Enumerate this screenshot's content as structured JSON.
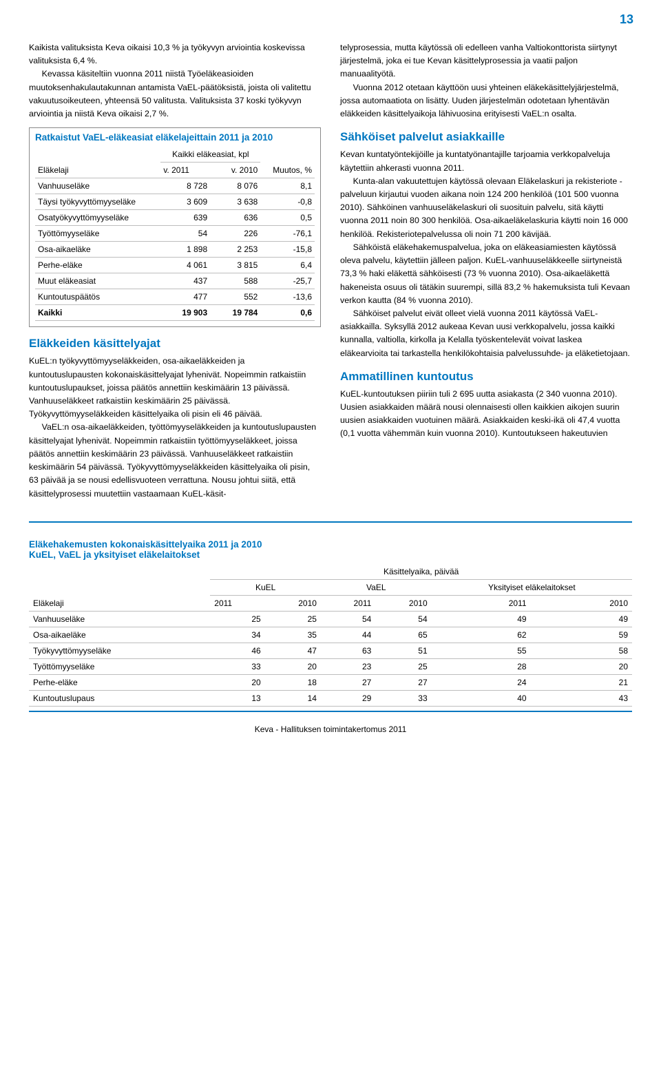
{
  "page_number": "13",
  "colors": {
    "accent": "#0077c0",
    "rule": "#bdbdbd",
    "text": "#000000",
    "background": "#ffffff"
  },
  "left": {
    "p1": "Kaikista valituksista Keva oikaisi 10,3 % ja työkyvyn arviointia koskevissa valituksista 6,4 %.",
    "p2": "Kevassa käsiteltiin vuonna 2011 niistä Työeläkeasioiden muutoksenhakulautakunnan antamista VaEL-päätöksistä, joista oli valitettu vakuutusoikeuteen, yhteensä 50 valitusta. Valituksista 37 koski työkyvyn arviointia ja niistä Keva oikaisi 2,7 %.",
    "table1": {
      "caption": "Ratkaistut VaEL-eläkeasiat eläkelajeittain 2011 ja 2010",
      "col_label": "Eläkelaji",
      "header_group": "Kaikki eläkeasiat, kpl",
      "col_2011": "v. 2011",
      "col_2010": "v. 2010",
      "col_change": "Muutos, %",
      "rows": [
        {
          "label": "Vanhuuseläke",
          "v2011": "8 728",
          "v2010": "8 076",
          "chg": "8,1"
        },
        {
          "label": "Täysi työkyvyttömyyseläke",
          "v2011": "3 609",
          "v2010": "3 638",
          "chg": "-0,8"
        },
        {
          "label": "Osatyökyvyttömyyseläke",
          "v2011": "639",
          "v2010": "636",
          "chg": "0,5"
        },
        {
          "label": "Työttömyyseläke",
          "v2011": "54",
          "v2010": "226",
          "chg": "-76,1"
        },
        {
          "label": "Osa-aikaeläke",
          "v2011": "1 898",
          "v2010": "2 253",
          "chg": "-15,8"
        },
        {
          "label": "Perhe-eläke",
          "v2011": "4 061",
          "v2010": "3 815",
          "chg": "6,4"
        },
        {
          "label": "Muut eläkeasiat",
          "v2011": "437",
          "v2010": "588",
          "chg": "-25,7"
        },
        {
          "label": "Kuntoutuspäätös",
          "v2011": "477",
          "v2010": "552",
          "chg": "-13,6"
        }
      ],
      "total": {
        "label": "Kaikki",
        "v2011": "19 903",
        "v2010": "19 784",
        "chg": "0,6"
      }
    },
    "h2_times": "Eläkkeiden käsittelyajat",
    "p3": "KuEL:n työkyvyttömyyseläkkeiden, osa-aikaeläkkeiden ja kuntoutuslupausten kokonaiskäsittelyajat lyhenivät. Nopeimmin ratkaistiin kuntoutuslupaukset, joissa päätös annettiin keskimäärin 13 päivässä. Vanhuuseläkkeet ratkaistiin keskimäärin 25 päivässä. Työkyvyttömyyseläkkeiden käsittelyaika oli pisin eli 46 päivää.",
    "p4": "VaEL:n osa-aikaeläkkeiden, työttömyyseläkkeiden ja kuntoutuslupausten käsittelyajat lyhenivät. Nopeimmin ratkaistiin työttömyyseläkkeet, joissa päätös annettiin keskimäärin 23 päivässä. Vanhuuseläkkeet ratkaistiin keskimäärin 54 päivässä. Työkyvyttömyyseläkkeiden käsittelyaika oli pisin, 63 päivää ja se nousi edellisvuoteen verrattuna. Nousu johtui siitä, että käsittelyprosessi muutettiin vastaamaan KuEL-käsit-"
  },
  "right": {
    "p1": "telyprosessia, mutta käytössä oli edelleen vanha Valtiokonttorista siirtynyt järjestelmä, joka ei tue Kevan käsittelyprosessia ja vaatii paljon manuaalityötä.",
    "p2": "Vuonna 2012 otetaan käyttöön uusi yhteinen eläkekäsittelyjärjestelmä, jossa automaatiota on lisätty. Uuden järjestelmän odotetaan lyhentävän eläkkeiden käsittelyaikoja lähivuosina erityisesti VaEL:n osalta.",
    "h2_digital": "Sähköiset palvelut asiakkaille",
    "p3": "Kevan kuntatyöntekijöille ja kuntatyönantajille tarjoamia verkkopalveluja käytettiin ahkerasti vuonna 2011.",
    "p4": "Kunta-alan vakuutettujen käytössä olevaan Eläkelaskuri ja rekisteriote -palveluun kirjautui vuoden aikana noin 124 200 henkilöä (101 500 vuonna 2010). Sähköinen vanhuuseläkelaskuri oli suosituin palvelu, sitä käytti vuonna 2011 noin 80 300 henkilöä. Osa-aikaeläkelaskuria käytti noin 16 000 henkilöä. Rekisteriotepalvelussa oli noin 71 200 kävijää.",
    "p5": "Sähköistä eläkehakemuspalvelua, joka on eläkeasiamiesten käytössä oleva palvelu, käytettiin jälleen paljon. KuEL-vanhuuseläkkeelle siirtyneistä 73,3 % haki eläkettä sähköisesti (73 % vuonna 2010). Osa-aikaeläkettä hakeneista osuus oli tätäkin suurempi, sillä 83,2 % hakemuksista tuli Kevaan verkon kautta (84 % vuonna 2010).",
    "p6": "Sähköiset palvelut eivät olleet vielä vuonna 2011 käytössä VaEL-asiakkailla. Syksyllä 2012 aukeaa Kevan uusi verkkopalvelu, jossa kaikki kunnalla, valtiolla, kirkolla ja Kelalla työskentelevät voivat laskea eläkearvioita tai tarkastella henkilökohtaisia palvelussuhde- ja eläketietojaan.",
    "h2_rehab": "Ammatillinen kuntoutus",
    "p7": "KuEL-kuntoutuksen piiriin tuli 2 695 uutta asiakasta (2 340 vuonna 2010). Uusien asiakkaiden määrä nousi olennaisesti ollen kaikkien aikojen suurin uusien asiakkaiden vuotuinen määrä. Asiakkaiden keski-ikä oli 47,4 vuotta (0,1 vuotta vähemmän kuin vuonna 2010). Kuntoutukseen hakeutuvien"
  },
  "table2": {
    "caption_l1": "Eläkehakemusten kokonaiskäsittelyaika 2011 ja 2010",
    "caption_l2": "KuEL, VaEL ja yksityiset eläkelaitokset",
    "col_label": "Eläkelaji",
    "header_group": "Käsittelyaika, päivää",
    "group1": "KuEL",
    "group2": "VaEL",
    "group3": "Yksityiset eläkelaitokset",
    "y2011": "2011",
    "y2010": "2010",
    "rows": [
      {
        "label": "Vanhuuseläke",
        "a": "25",
        "b": "25",
        "c": "54",
        "d": "54",
        "e": "49",
        "f": "49"
      },
      {
        "label": "Osa-aikaeläke",
        "a": "34",
        "b": "35",
        "c": "44",
        "d": "65",
        "e": "62",
        "f": "59"
      },
      {
        "label": "Työkyvyttömyyseläke",
        "a": "46",
        "b": "47",
        "c": "63",
        "d": "51",
        "e": "55",
        "f": "58"
      },
      {
        "label": "Työttömyyseläke",
        "a": "33",
        "b": "20",
        "c": "23",
        "d": "25",
        "e": "28",
        "f": "20"
      },
      {
        "label": "Perhe-eläke",
        "a": "20",
        "b": "18",
        "c": "27",
        "d": "27",
        "e": "24",
        "f": "21"
      },
      {
        "label": "Kuntoutuslupaus",
        "a": "13",
        "b": "14",
        "c": "29",
        "d": "33",
        "e": "40",
        "f": "43"
      }
    ]
  },
  "footer": "Keva - Hallituksen toimintakertomus 2011"
}
